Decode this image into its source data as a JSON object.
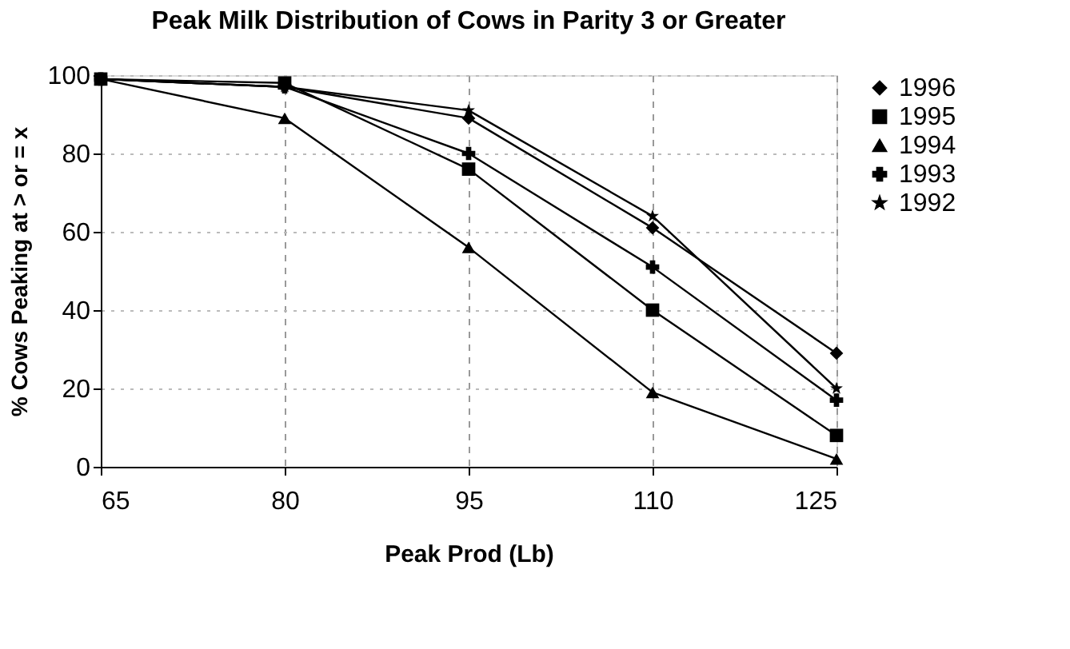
{
  "chart_data": {
    "type": "line",
    "title": "Peak Milk Distribution of Cows in Parity 3 or Greater",
    "xlabel": "Peak Prod (Lb)",
    "ylabel": "% Cows Peaking at > or = x",
    "x": [
      65,
      80,
      95,
      110,
      125
    ],
    "xlim": [
      65,
      125
    ],
    "xticks": [
      65,
      80,
      95,
      110,
      125
    ],
    "ylim": [
      0,
      100
    ],
    "yticks": [
      0,
      20,
      40,
      60,
      80,
      100
    ],
    "grid": true,
    "legend": "right",
    "line_style": "solid",
    "series": [
      {
        "name": "1996",
        "color": "#000000",
        "marker": "diamond",
        "values": [
          99,
          97,
          89,
          61,
          29
        ]
      },
      {
        "name": "1995",
        "color": "#000000",
        "marker": "square",
        "values": [
          99,
          98,
          76,
          40,
          8
        ]
      },
      {
        "name": "1994",
        "color": "#000000",
        "marker": "triangle",
        "values": [
          99,
          89,
          56,
          19,
          2
        ]
      },
      {
        "name": "1993",
        "color": "#000000",
        "marker": "cross",
        "values": [
          99,
          97,
          80,
          51,
          17
        ]
      },
      {
        "name": "1992",
        "color": "#000000",
        "marker": "star",
        "values": [
          99,
          97,
          91,
          64,
          20
        ]
      }
    ]
  }
}
